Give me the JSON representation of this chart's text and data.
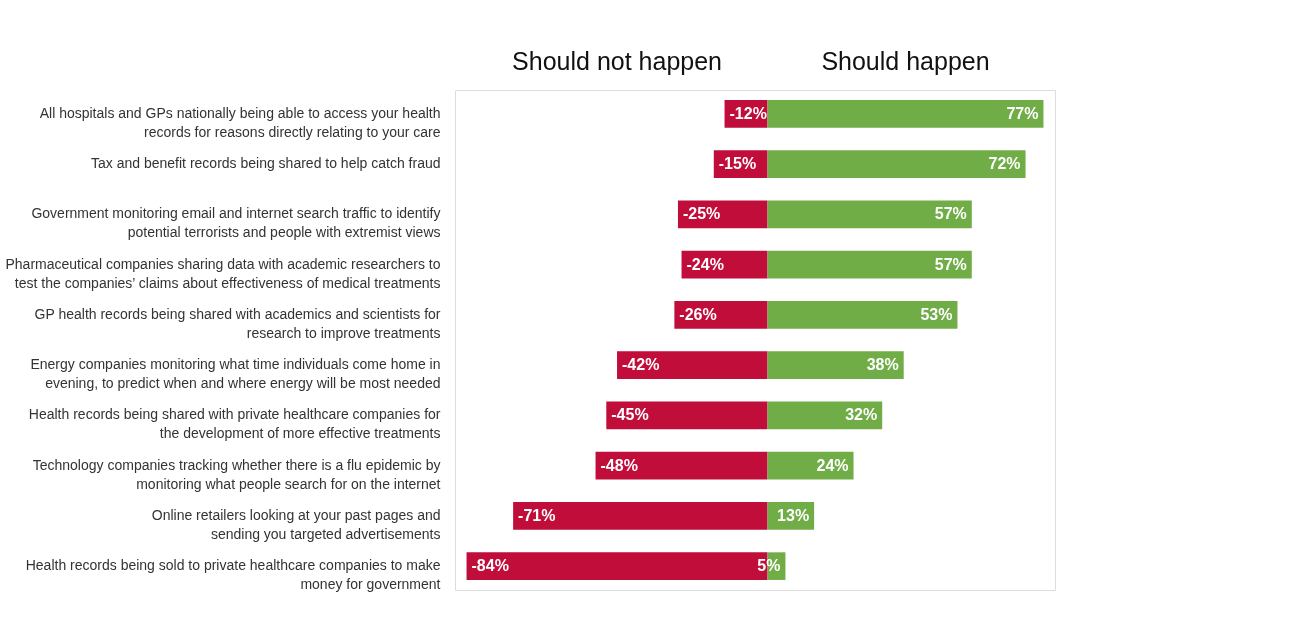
{
  "chart_data": {
    "type": "bar",
    "orientation": "horizontal",
    "stacked": true,
    "legend": false,
    "categories": [
      "All hospitals and GPs nationally being able to access your health\nrecords for reasons directly relating to your care",
      "Tax and benefit records being shared to help catch fraud",
      "Government monitoring email and internet search traffic to identify\npotential terrorists and people with extremist views",
      "Pharmaceutical companies sharing data with academic researchers to\ntest the companies’ claims about effectiveness of medical treatments",
      "GP health records being shared with academics and scientists for\nresearch to improve treatments",
      "Energy companies monitoring what time individuals come home in\nevening, to predict when and where energy will be most needed",
      "Health records being shared with private healthcare companies for\nthe development of more effective treatments",
      "Technology companies tracking whether there is a flu epidemic by\nmonitoring what people search for on the internet",
      "Online retailers looking at your past pages and\nsending you targeted advertisements",
      "Health records being sold to private healthcare companies to make\nmoney for government"
    ],
    "series": [
      {
        "name": "Should not happen",
        "color": "#c00d3a",
        "values": [
          -12,
          -15,
          -25,
          -24,
          -26,
          -42,
          -45,
          -48,
          -71,
          -84
        ],
        "value_labels": [
          "-12%",
          "-15%",
          "-25%",
          "-24%",
          "-26%",
          "-42%",
          "-45%",
          "-48%",
          "-71%",
          "-84%"
        ]
      },
      {
        "name": "Should happen",
        "color": "#70ad47",
        "values": [
          77,
          72,
          57,
          57,
          53,
          38,
          32,
          24,
          13,
          5
        ],
        "value_labels": [
          "77%",
          "72%",
          "57%",
          "57%",
          "53%",
          "38%",
          "32%",
          "24%",
          "13%",
          "5%"
        ]
      }
    ]
  }
}
